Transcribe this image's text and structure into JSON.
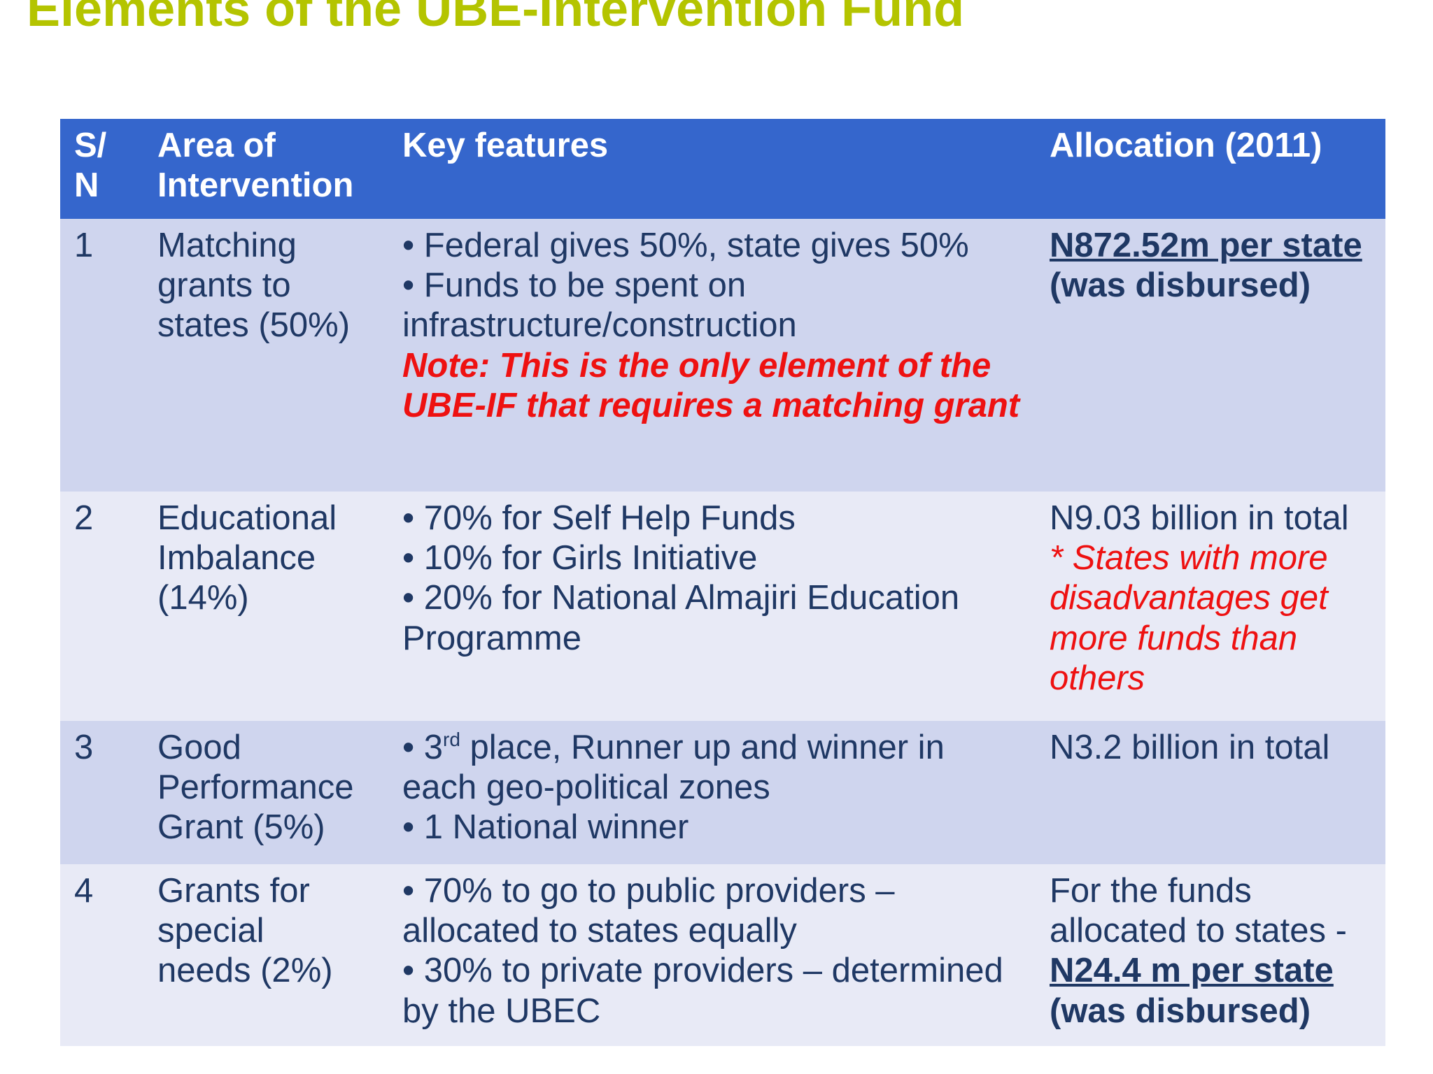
{
  "title": "Elements of the UBE-Intervention Fund",
  "table": {
    "headers": {
      "sn": [
        "S/",
        "N"
      ],
      "area": [
        "Area of",
        "Intervention"
      ],
      "features": "Key features",
      "allocation": "Allocation (2011)"
    },
    "rows": [
      {
        "sn": "1",
        "area": [
          "Matching",
          "grants to",
          "states  (50%)"
        ],
        "features": [
          "• Federal gives 50%, state gives 50%",
          "• Funds to be spent on",
          "infrastructure/construction"
        ],
        "note": "Note: This is the only element of the UBE-IF that requires a matching grant",
        "allocation": {
          "amount": "N872.52m per state ",
          "suffix": "(was disbursed)"
        }
      },
      {
        "sn": "2",
        "area": [
          "Educational",
          "Imbalance",
          "(14%)"
        ],
        "features": [
          "• 70% for Self Help Funds",
          "• 10% for Girls Initiative",
          "• 20% for National Almajiri Education Programme"
        ],
        "allocation": {
          "total": "N9.03 billion in total",
          "note": "* States with more disadvantages get more funds than others"
        }
      },
      {
        "sn": "3",
        "area": [
          "Good",
          "Performance",
          "Grant (5%)"
        ],
        "features": {
          "bullet1_prefix": "• 3",
          "bullet1_sup": "rd",
          "bullet1_rest": " place, Runner up and winner in each geo-political zones",
          "bullet2": "• 1 National winner"
        },
        "allocation": {
          "total": "N3.2 billion in total"
        }
      },
      {
        "sn": "4",
        "area": [
          "Grants for",
          "special",
          "needs (2%)"
        ],
        "features": [
          "• 70% to go to public providers – allocated to states equally",
          "• 30% to private providers – determined by the UBEC"
        ],
        "allocation": {
          "intro": "For the funds allocated to states -",
          "amount": "N24.4 m per state",
          "suffix": "(was disbursed)"
        }
      }
    ]
  }
}
